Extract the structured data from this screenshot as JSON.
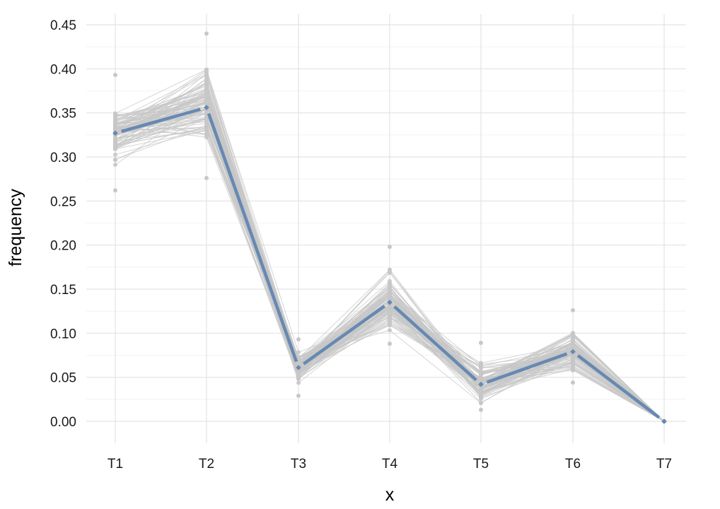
{
  "chart_data": {
    "type": "line",
    "title": "",
    "xlabel": "x",
    "ylabel": "frequency",
    "categories": [
      "T1",
      "T2",
      "T3",
      "T4",
      "T5",
      "T6",
      "T7"
    ],
    "ylim": [
      -0.025,
      0.455
    ],
    "yticks": [
      0.0,
      0.05,
      0.1,
      0.15,
      0.2,
      0.25,
      0.3,
      0.35,
      0.4,
      0.45
    ],
    "ytick_labels": [
      "0.00",
      "0.05",
      "0.10",
      "0.15",
      "0.20",
      "0.25",
      "0.30",
      "0.35",
      "0.40",
      "0.45"
    ],
    "grid": true,
    "legend": "none",
    "series": [
      {
        "values": [
          0.327,
          0.356,
          0.061,
          0.135,
          0.042,
          0.079,
          0.0
        ],
        "color": "#6689b3",
        "role": "mean"
      }
    ],
    "replicates": {
      "count": 100,
      "color": "#c7c7c7",
      "min": [
        0.262,
        0.276,
        0.029,
        0.088,
        0.013,
        0.044,
        0.0
      ],
      "max": [
        0.393,
        0.44,
        0.093,
        0.198,
        0.089,
        0.126,
        0.0
      ]
    },
    "colors": {
      "grid": "#e3e3e3",
      "mean": "#6689b3",
      "replicate": "#c7c7c7"
    }
  }
}
